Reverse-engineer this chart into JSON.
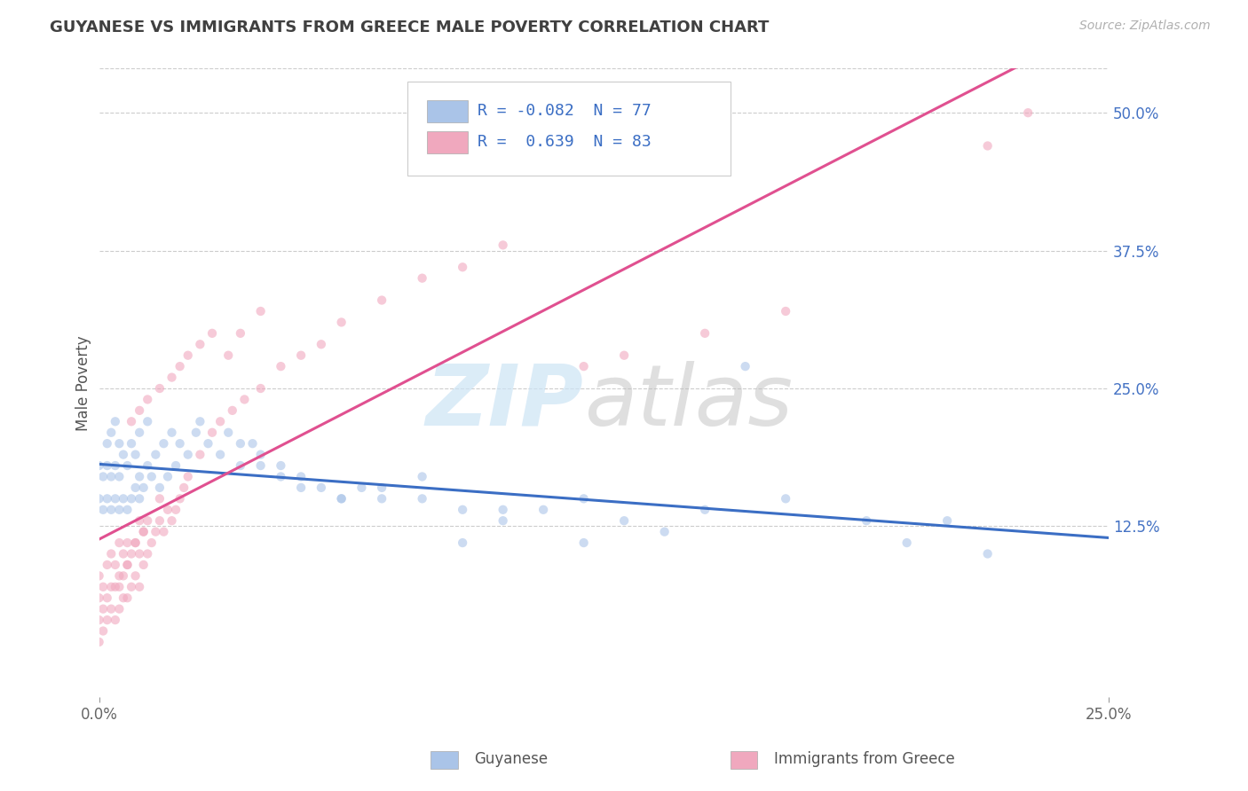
{
  "title": "GUYANESE VS IMMIGRANTS FROM GREECE MALE POVERTY CORRELATION CHART",
  "source": "Source: ZipAtlas.com",
  "ylabel": "Male Poverty",
  "xlim": [
    0.0,
    0.25
  ],
  "ylim": [
    -0.03,
    0.54
  ],
  "ytick_vals": [
    0.125,
    0.25,
    0.375,
    0.5
  ],
  "ytick_labels": [
    "12.5%",
    "25.0%",
    "37.5%",
    "50.0%"
  ],
  "legend": [
    {
      "label": "Guyanese",
      "R": -0.082,
      "N": 77,
      "color": "#aac4e8",
      "line_color": "#3b6ec4"
    },
    {
      "label": "Immigrants from Greece",
      "R": 0.639,
      "N": 83,
      "color": "#f0a8be",
      "line_color": "#e05090"
    }
  ],
  "background_color": "#ffffff",
  "grid_color": "#cccccc",
  "title_color": "#404040",
  "source_color": "#b0b0b0",
  "scatter_alpha": 0.6,
  "scatter_size": 55,
  "guyanese_x": [
    0.0,
    0.0,
    0.001,
    0.001,
    0.002,
    0.002,
    0.002,
    0.003,
    0.003,
    0.003,
    0.004,
    0.004,
    0.004,
    0.005,
    0.005,
    0.005,
    0.006,
    0.006,
    0.007,
    0.007,
    0.008,
    0.008,
    0.009,
    0.009,
    0.01,
    0.01,
    0.01,
    0.011,
    0.012,
    0.012,
    0.013,
    0.014,
    0.015,
    0.016,
    0.017,
    0.018,
    0.019,
    0.02,
    0.022,
    0.024,
    0.025,
    0.027,
    0.03,
    0.032,
    0.035,
    0.038,
    0.04,
    0.045,
    0.05,
    0.055,
    0.06,
    0.065,
    0.07,
    0.08,
    0.09,
    0.1,
    0.11,
    0.12,
    0.13,
    0.15,
    0.17,
    0.19,
    0.21,
    0.22,
    0.16,
    0.035,
    0.04,
    0.045,
    0.05,
    0.06,
    0.07,
    0.08,
    0.09,
    0.1,
    0.12,
    0.14,
    0.2
  ],
  "guyanese_y": [
    0.15,
    0.18,
    0.14,
    0.17,
    0.15,
    0.18,
    0.2,
    0.14,
    0.17,
    0.21,
    0.15,
    0.18,
    0.22,
    0.14,
    0.17,
    0.2,
    0.15,
    0.19,
    0.14,
    0.18,
    0.15,
    0.2,
    0.16,
    0.19,
    0.15,
    0.17,
    0.21,
    0.16,
    0.18,
    0.22,
    0.17,
    0.19,
    0.16,
    0.2,
    0.17,
    0.21,
    0.18,
    0.2,
    0.19,
    0.21,
    0.22,
    0.2,
    0.19,
    0.21,
    0.18,
    0.2,
    0.19,
    0.18,
    0.17,
    0.16,
    0.15,
    0.16,
    0.15,
    0.15,
    0.14,
    0.14,
    0.14,
    0.15,
    0.13,
    0.14,
    0.15,
    0.13,
    0.13,
    0.1,
    0.27,
    0.2,
    0.18,
    0.17,
    0.16,
    0.15,
    0.16,
    0.17,
    0.11,
    0.13,
    0.11,
    0.12,
    0.11
  ],
  "greece_x": [
    0.0,
    0.0,
    0.0,
    0.0,
    0.001,
    0.001,
    0.001,
    0.002,
    0.002,
    0.002,
    0.003,
    0.003,
    0.003,
    0.004,
    0.004,
    0.004,
    0.005,
    0.005,
    0.005,
    0.006,
    0.006,
    0.006,
    0.007,
    0.007,
    0.007,
    0.008,
    0.008,
    0.009,
    0.009,
    0.01,
    0.01,
    0.01,
    0.011,
    0.011,
    0.012,
    0.012,
    0.013,
    0.014,
    0.015,
    0.016,
    0.017,
    0.018,
    0.019,
    0.02,
    0.021,
    0.022,
    0.025,
    0.028,
    0.03,
    0.033,
    0.036,
    0.04,
    0.045,
    0.05,
    0.055,
    0.06,
    0.07,
    0.08,
    0.09,
    0.1,
    0.12,
    0.13,
    0.15,
    0.17,
    0.008,
    0.01,
    0.012,
    0.015,
    0.018,
    0.02,
    0.022,
    0.025,
    0.028,
    0.032,
    0.035,
    0.04,
    0.005,
    0.007,
    0.009,
    0.011,
    0.015,
    0.22,
    0.23
  ],
  "greece_y": [
    0.02,
    0.04,
    0.06,
    0.08,
    0.03,
    0.05,
    0.07,
    0.04,
    0.06,
    0.09,
    0.05,
    0.07,
    0.1,
    0.04,
    0.07,
    0.09,
    0.05,
    0.08,
    0.11,
    0.06,
    0.08,
    0.1,
    0.06,
    0.09,
    0.11,
    0.07,
    0.1,
    0.08,
    0.11,
    0.07,
    0.1,
    0.13,
    0.09,
    0.12,
    0.1,
    0.13,
    0.11,
    0.12,
    0.13,
    0.12,
    0.14,
    0.13,
    0.14,
    0.15,
    0.16,
    0.17,
    0.19,
    0.21,
    0.22,
    0.23,
    0.24,
    0.25,
    0.27,
    0.28,
    0.29,
    0.31,
    0.33,
    0.35,
    0.36,
    0.38,
    0.27,
    0.28,
    0.3,
    0.32,
    0.22,
    0.23,
    0.24,
    0.25,
    0.26,
    0.27,
    0.28,
    0.29,
    0.3,
    0.28,
    0.3,
    0.32,
    0.07,
    0.09,
    0.11,
    0.12,
    0.15,
    0.47,
    0.5
  ]
}
